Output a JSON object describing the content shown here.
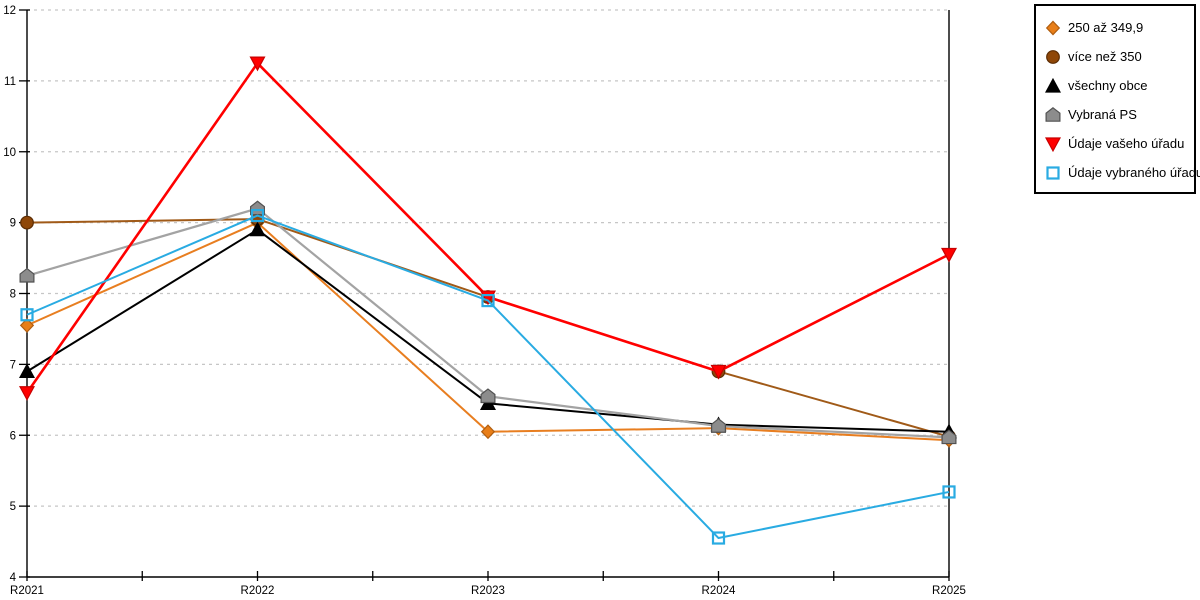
{
  "chart_data": {
    "type": "line",
    "title": "",
    "xlabel": "",
    "ylabel": "",
    "categories": [
      "R2021",
      "R2022",
      "R2023",
      "R2024",
      "R2025"
    ],
    "ylim": [
      4,
      12
    ],
    "yticks": [
      4,
      5,
      6,
      7,
      8,
      9,
      10,
      11,
      12
    ],
    "grid": "horizontal-dashed",
    "gridline_color": "#C6C6C6",
    "axis_color": "#000000",
    "legend_position": "outside-top-right",
    "series": [
      {
        "name": "250 až 349,9",
        "marker": "diamond",
        "color": "#E87E20",
        "marker_fill": "#E87E18",
        "marker_stroke": "#B05E10",
        "line_width": 2,
        "values": [
          7.55,
          9.0,
          6.05,
          6.1,
          5.93
        ]
      },
      {
        "name": "více než 350",
        "marker": "circle",
        "color": "#A05A18",
        "marker_fill": "#8F4708",
        "marker_stroke": "#5C2D04",
        "line_width": 2,
        "values": [
          9.0,
          9.05,
          7.95,
          6.9,
          5.98
        ]
      },
      {
        "name": "všechny obce",
        "marker": "triangle-up",
        "color": "#000000",
        "marker_fill": "#000000",
        "marker_stroke": "#000000",
        "line_width": 2,
        "values": [
          6.9,
          8.9,
          6.45,
          6.15,
          6.05
        ]
      },
      {
        "name": "Vybraná PS",
        "marker": "pentagon",
        "color": "#A3A3A3",
        "marker_fill": "#8C8C8C",
        "marker_stroke": "#525252",
        "line_width": 2.2,
        "values": [
          8.25,
          9.2,
          6.55,
          6.13,
          5.97
        ]
      },
      {
        "name": "Údaje vašeho úřadu",
        "marker": "triangle-down",
        "color": "#FF0000",
        "marker_fill": "#FF0000",
        "marker_stroke": "#C80000",
        "line_width": 2.6,
        "values": [
          6.6,
          11.25,
          7.95,
          6.9,
          8.55
        ]
      },
      {
        "name": "Údaje vybraného úřadu",
        "marker": "square-open",
        "color": "#29ABE2",
        "marker_fill": "none",
        "marker_stroke": "#29ABE2",
        "line_width": 2,
        "values": [
          7.7,
          9.1,
          7.9,
          4.55,
          5.2
        ]
      }
    ]
  }
}
